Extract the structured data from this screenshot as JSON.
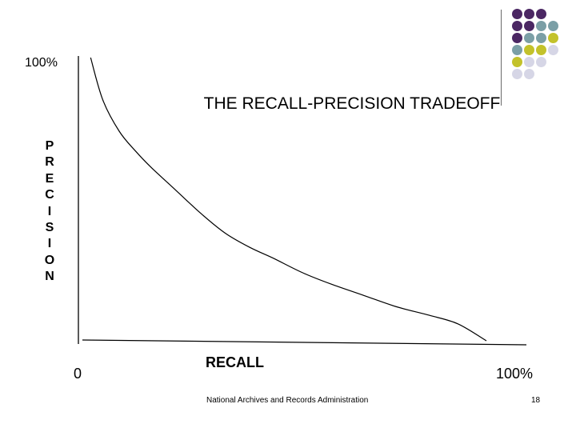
{
  "slide": {
    "title": "THE RECALL-PRECISION TRADEOFF",
    "footer": "National Archives and Records Administration",
    "page_number": "18"
  },
  "decor": {
    "dot_colors": {
      "purple": "#4b2763",
      "teal": "#7b9fa6",
      "olive": "#c3c22b",
      "lavender": "#d6d6e6"
    },
    "dot_rows": [
      [
        "purple",
        "purple",
        "purple"
      ],
      [
        "purple",
        "purple",
        "teal",
        "teal"
      ],
      [
        "purple",
        "teal",
        "teal",
        "olive"
      ],
      [
        "teal",
        "olive",
        "olive",
        "lavender"
      ],
      [
        "olive",
        "lavender",
        "lavender"
      ],
      [
        "lavender",
        "lavender"
      ]
    ]
  },
  "chart_data": {
    "type": "line",
    "title": "THE RECALL-PRECISION TRADEOFF",
    "xlabel": "RECALL",
    "ylabel": "PRECISION",
    "y_top_label": "100%",
    "x_start_label": "0",
    "x_end_label": "100%",
    "xlim": [
      0,
      100
    ],
    "ylim": [
      0,
      100
    ],
    "grid": false,
    "legend": "none",
    "line_color": "#000000",
    "series": [
      {
        "x": [
          3,
          6,
          10,
          14,
          18,
          24,
          30,
          36,
          42,
          48,
          55,
          62,
          70,
          78,
          86,
          93,
          100
        ],
        "y": [
          100,
          85,
          74,
          67,
          61,
          53,
          45,
          38,
          33,
          29,
          24,
          20,
          16,
          12,
          9,
          6,
          0
        ]
      }
    ]
  }
}
